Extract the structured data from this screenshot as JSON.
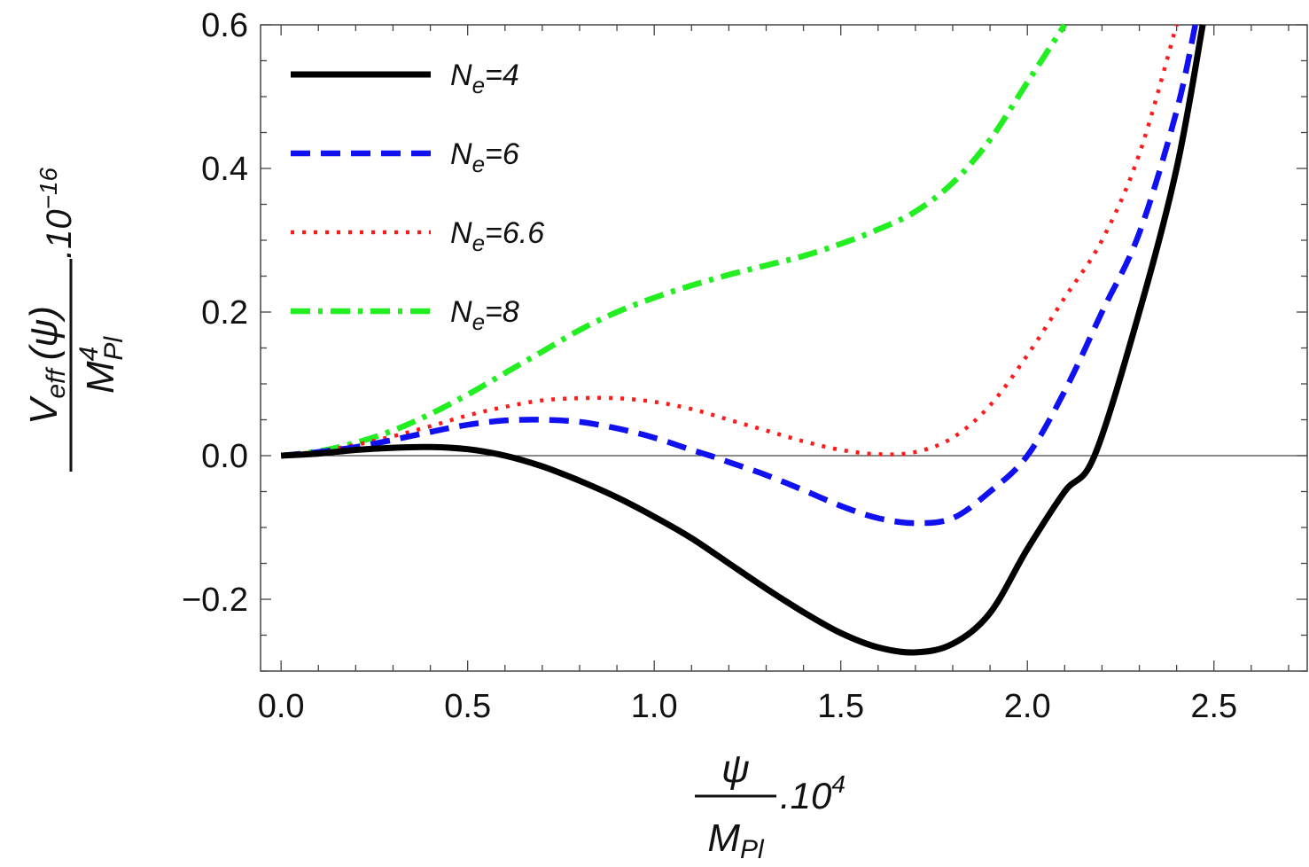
{
  "chart_data": {
    "type": "line",
    "xlim": [
      -0.055,
      2.75
    ],
    "ylim": [
      -0.3,
      0.6
    ],
    "x_ticks": [
      0.0,
      0.5,
      1.0,
      1.5,
      2.0,
      2.5
    ],
    "x_tick_labels": [
      "0.0",
      "0.5",
      "1.0",
      "1.5",
      "2.0",
      "2.5"
    ],
    "y_ticks": [
      -0.2,
      0.0,
      0.2,
      0.4,
      0.6
    ],
    "y_tick_labels": [
      "−0.2",
      "0.0",
      "0.2",
      "0.4",
      "0.6"
    ],
    "xlabel": {
      "numerator": "ψ",
      "denominator_base": "M",
      "denominator_sub": "Pl",
      "suffix": ".10",
      "suffix_exp": "4"
    },
    "ylabel": {
      "numerator": "V",
      "numerator_sub": "eff",
      "numerator_arg": "(ψ)",
      "denominator_base": "M",
      "denominator_sup": "4",
      "denominator_sub": "Pl",
      "suffix": ".10",
      "suffix_exp": "−16"
    },
    "legend_position": "top-left",
    "series": [
      {
        "name": "N_e=4",
        "label_base": "N",
        "label_sub": "e",
        "label_rest": "=4",
        "color": "#000000",
        "style": "solid",
        "x": [
          0.0,
          0.1,
          0.2,
          0.3,
          0.4,
          0.5,
          0.6,
          0.7,
          0.8,
          0.9,
          1.0,
          1.1,
          1.2,
          1.3,
          1.4,
          1.5,
          1.6,
          1.7,
          1.8,
          1.9,
          2.0,
          2.1,
          2.18,
          2.3,
          2.4,
          2.47
        ],
        "y": [
          0.0,
          0.003,
          0.008,
          0.011,
          0.012,
          0.009,
          0.0,
          -0.015,
          -0.035,
          -0.058,
          -0.085,
          -0.115,
          -0.15,
          -0.185,
          -0.218,
          -0.247,
          -0.267,
          -0.274,
          -0.262,
          -0.219,
          -0.13,
          -0.05,
          0.0,
          0.2,
          0.4,
          0.6
        ]
      },
      {
        "name": "N_e=6",
        "label_base": "N",
        "label_sub": "e",
        "label_rest": "=6",
        "color": "#1010f0",
        "style": "dashed",
        "x": [
          0.0,
          0.1,
          0.2,
          0.3,
          0.4,
          0.5,
          0.6,
          0.7,
          0.8,
          0.9,
          1.0,
          1.1,
          1.15,
          1.2,
          1.3,
          1.4,
          1.5,
          1.6,
          1.7,
          1.8,
          1.9,
          2.0,
          2.1,
          2.2,
          2.3,
          2.4,
          2.45
        ],
        "y": [
          0.0,
          0.005,
          0.012,
          0.022,
          0.033,
          0.043,
          0.049,
          0.05,
          0.047,
          0.038,
          0.025,
          0.008,
          0.0,
          -0.009,
          -0.027,
          -0.048,
          -0.07,
          -0.087,
          -0.094,
          -0.087,
          -0.05,
          0.0,
          0.09,
          0.2,
          0.31,
          0.48,
          0.6
        ]
      },
      {
        "name": "N_e=6.6",
        "label_base": "N",
        "label_sub": "e",
        "label_rest": "=6.6",
        "color": "#ff1a1a",
        "style": "dotted",
        "x": [
          0.0,
          0.1,
          0.2,
          0.3,
          0.4,
          0.5,
          0.6,
          0.7,
          0.8,
          0.9,
          1.0,
          1.1,
          1.2,
          1.3,
          1.4,
          1.5,
          1.6,
          1.7,
          1.8,
          1.9,
          2.0,
          2.1,
          2.2,
          2.3,
          2.4
        ],
        "y": [
          0.0,
          0.006,
          0.015,
          0.027,
          0.041,
          0.056,
          0.068,
          0.077,
          0.08,
          0.08,
          0.075,
          0.065,
          0.05,
          0.035,
          0.02,
          0.008,
          0.002,
          0.005,
          0.025,
          0.07,
          0.14,
          0.22,
          0.3,
          0.42,
          0.6
        ]
      },
      {
        "name": "N_e=8",
        "label_base": "N",
        "label_sub": "e",
        "label_rest": "=8",
        "color": "#22ee22",
        "style": "dashdot",
        "x": [
          0.0,
          0.1,
          0.2,
          0.3,
          0.4,
          0.5,
          0.6,
          0.7,
          0.8,
          0.9,
          1.0,
          1.1,
          1.2,
          1.3,
          1.4,
          1.5,
          1.6,
          1.7,
          1.8,
          1.9,
          2.0,
          2.1
        ],
        "y": [
          0.0,
          0.006,
          0.018,
          0.035,
          0.058,
          0.085,
          0.115,
          0.145,
          0.175,
          0.2,
          0.22,
          0.237,
          0.252,
          0.265,
          0.278,
          0.295,
          0.315,
          0.34,
          0.38,
          0.44,
          0.52,
          0.6
        ]
      }
    ]
  }
}
